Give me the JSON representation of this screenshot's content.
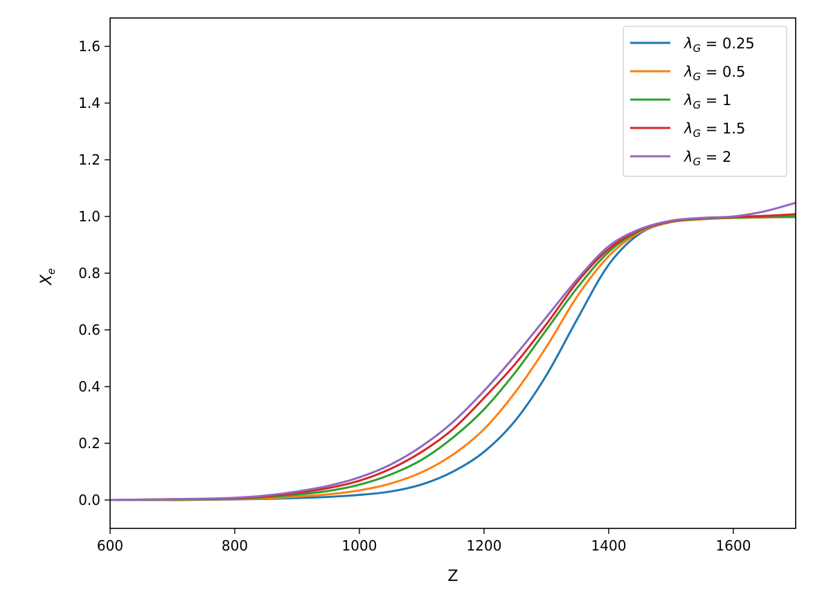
{
  "chart_data": {
    "type": "line",
    "title": "",
    "xlabel": "Z",
    "ylabel": "X",
    "ylabel_subscript": "e",
    "xlim": [
      600,
      1700
    ],
    "ylim": [
      -0.1,
      1.7
    ],
    "xticks": [
      600,
      800,
      1000,
      1200,
      1400,
      1600
    ],
    "yticks": [
      "0.0",
      "0.2",
      "0.4",
      "0.6",
      "0.8",
      "1.0",
      "1.2",
      "1.4",
      "1.6"
    ],
    "grid": false,
    "legend_position": "top-right",
    "legend_symbol": "λ",
    "legend_subscript": "G",
    "x": [
      600,
      700,
      800,
      850,
      900,
      950,
      1000,
      1050,
      1100,
      1150,
      1200,
      1250,
      1300,
      1350,
      1400,
      1450,
      1500,
      1550,
      1600,
      1650,
      1700
    ],
    "series": [
      {
        "name": "0.25",
        "color": "#1f77b4",
        "values": [
          0.0,
          0.0,
          0.002,
          0.004,
          0.007,
          0.011,
          0.018,
          0.03,
          0.055,
          0.1,
          0.17,
          0.28,
          0.44,
          0.64,
          0.83,
          0.94,
          0.98,
          0.99,
          0.995,
          0.997,
          0.998
        ]
      },
      {
        "name": "0.5",
        "color": "#ff7f0e",
        "values": [
          0.0,
          0.001,
          0.003,
          0.006,
          0.012,
          0.02,
          0.034,
          0.058,
          0.098,
          0.16,
          0.25,
          0.38,
          0.54,
          0.72,
          0.86,
          0.945,
          0.98,
          0.99,
          0.995,
          0.997,
          0.999
        ]
      },
      {
        "name": "1",
        "color": "#2ca02c",
        "values": [
          0.0,
          0.002,
          0.005,
          0.01,
          0.019,
          0.032,
          0.054,
          0.09,
          0.142,
          0.22,
          0.32,
          0.45,
          0.6,
          0.75,
          0.875,
          0.95,
          0.982,
          0.992,
          0.996,
          0.998,
          1.0
        ]
      },
      {
        "name": "1.5",
        "color": "#d62728",
        "values": [
          0.0,
          0.003,
          0.006,
          0.013,
          0.025,
          0.042,
          0.068,
          0.11,
          0.17,
          0.25,
          0.36,
          0.48,
          0.62,
          0.77,
          0.885,
          0.952,
          0.983,
          0.994,
          0.998,
          1.002,
          1.008
        ]
      },
      {
        "name": "2",
        "color": "#9467bd",
        "values": [
          0.0,
          0.003,
          0.008,
          0.016,
          0.03,
          0.05,
          0.08,
          0.125,
          0.19,
          0.275,
          0.385,
          0.51,
          0.645,
          0.78,
          0.895,
          0.955,
          0.985,
          0.995,
          1.0,
          1.018,
          1.048
        ]
      }
    ]
  }
}
